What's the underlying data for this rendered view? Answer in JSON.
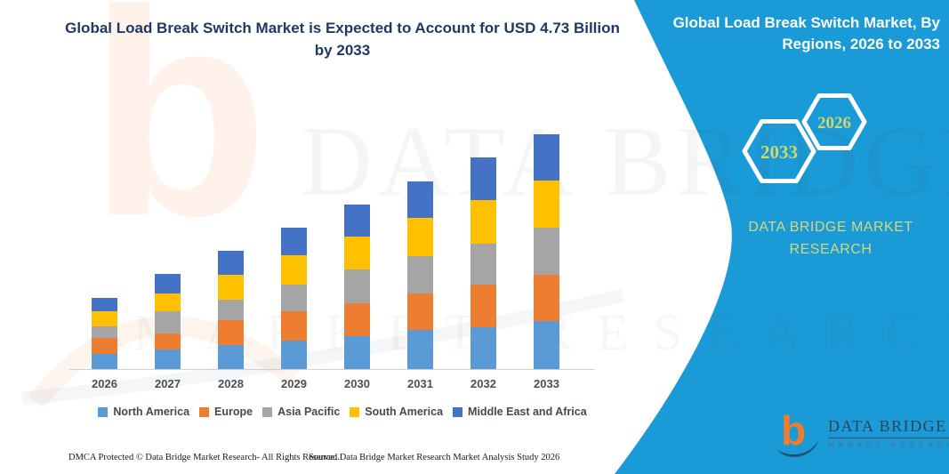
{
  "title": {
    "line1": "Global Load Break Switch Market is Expected to Account for USD 4.73 Billion",
    "line2": "by 2033"
  },
  "panel": {
    "heading_line1": "Global Load Break Switch Market, By",
    "heading_line2": "Regions, 2026 to 2033",
    "hexagons": [
      {
        "label": "2033"
      },
      {
        "label": "2026"
      }
    ],
    "brand_line1": "DATA BRIDGE MARKET",
    "brand_line2": "RESEARCH",
    "logo_title": "DATA BRIDGE",
    "logo_subtitle": "MARKET RESEARCH",
    "background_color": "#1A9AD7",
    "accent_gold": "#CDD76E"
  },
  "watermark": {
    "letter": "b",
    "big_text": "DATA BRIDGE",
    "sub_text": "MARKET RESEARCH"
  },
  "footer": {
    "left": "DMCA Protected © Data Bridge Market Research-  All Rights Reserved.",
    "right": "Source: Data Bridge Market Research  Market Analysis Study 2026"
  },
  "colors": {
    "title_navy": "#1F3864",
    "panel_blue": "#1A9AD7",
    "axis_line": "#CFCFCF",
    "axis_label": "#4F4F4F",
    "legend_text": "#4A4A42"
  },
  "chart_data": {
    "type": "bar",
    "stacked": true,
    "unit": "USD Billion",
    "title": "Global Load Break Switch Market, By Regions, 2026 to 2033",
    "categories": [
      "2026",
      "2027",
      "2028",
      "2029",
      "2030",
      "2031",
      "2032",
      "2033"
    ],
    "series": [
      {
        "name": "North America",
        "color": "#5B9BD5",
        "values": [
          0.3,
          0.39,
          0.48,
          0.57,
          0.66,
          0.79,
          0.84,
          0.97
        ]
      },
      {
        "name": "Europe",
        "color": "#ED7D31",
        "values": [
          0.32,
          0.32,
          0.5,
          0.59,
          0.66,
          0.73,
          0.86,
          0.93
        ]
      },
      {
        "name": "Asia Pacific",
        "color": "#A5A5A5",
        "values": [
          0.23,
          0.45,
          0.41,
          0.54,
          0.68,
          0.75,
          0.82,
          0.95
        ]
      },
      {
        "name": "South America",
        "color": "#FFC000",
        "values": [
          0.3,
          0.36,
          0.5,
          0.59,
          0.66,
          0.77,
          0.88,
          0.95
        ]
      },
      {
        "name": "Middle East and Africa",
        "color": "#4472C4",
        "values": [
          0.27,
          0.39,
          0.48,
          0.56,
          0.65,
          0.73,
          0.86,
          0.93
        ]
      }
    ],
    "totals": [
      1.42,
      1.91,
      2.37,
      2.85,
      3.31,
      3.77,
      4.26,
      4.73
    ],
    "value_axis_visible": false,
    "gridlines": false,
    "legend_position": "bottom"
  }
}
